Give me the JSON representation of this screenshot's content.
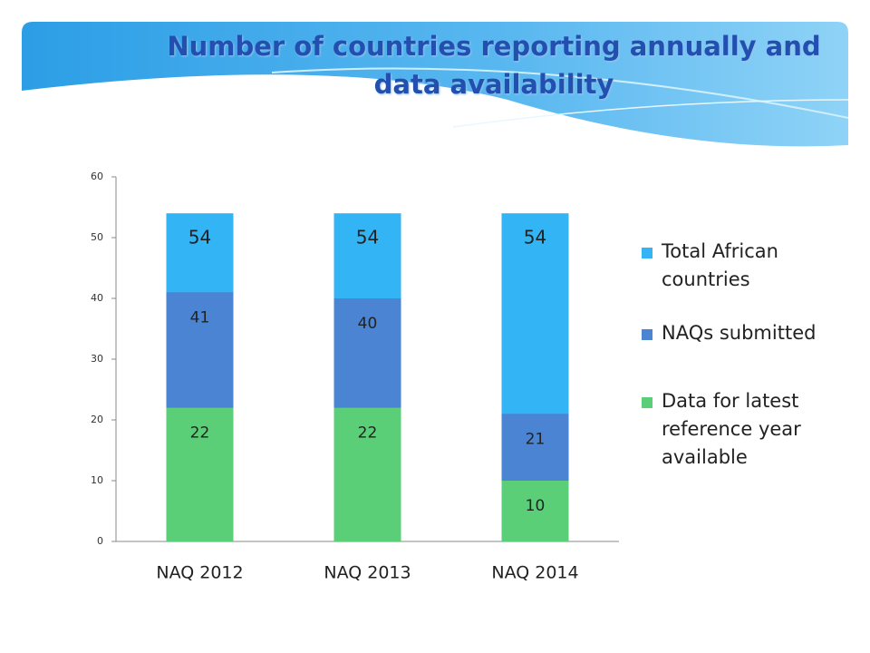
{
  "chart_data": {
    "type": "bar",
    "title": "Number of countries reporting annually and data availability",
    "categories": [
      "NAQ 2012",
      "NAQ 2013",
      "NAQ 2014"
    ],
    "series": [
      {
        "name": "Total African countries",
        "color": "#33b5f5",
        "values": [
          54,
          54,
          54
        ]
      },
      {
        "name": "NAQs submitted",
        "color": "#4a84d2",
        "values": [
          41,
          40,
          21
        ]
      },
      {
        "name": "Data for latest reference year available",
        "color": "#5bcf78",
        "values": [
          22,
          22,
          10
        ]
      }
    ],
    "ylim": [
      0,
      60
    ],
    "yticks": [
      0,
      10,
      20,
      30,
      40,
      50,
      60
    ],
    "grid": false
  }
}
